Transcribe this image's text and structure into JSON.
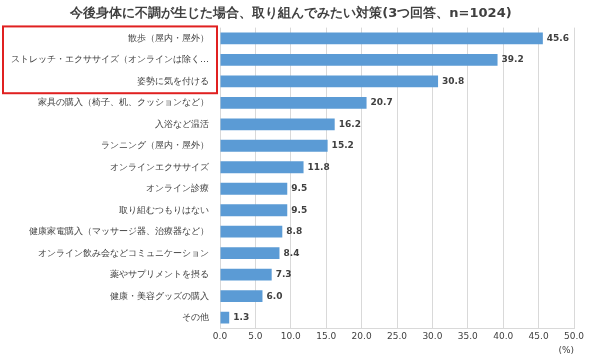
{
  "chart_data": {
    "type": "bar",
    "orientation": "horizontal",
    "title": "今後身体に不調が生じた場合、取り組んでみたい対策(3つ回答、n=1024)",
    "xlabel": "(%)",
    "categories": [
      "散歩（屋内・屋外）",
      "ストレッチ・エクササイズ（オンラインは除く…",
      "姿勢に気を付ける",
      "家具の購入（椅子、机、クッションなど）",
      "入浴など温活",
      "ランニング（屋内・屋外）",
      "オンラインエクササイズ",
      "オンライン診療",
      "取り組むつもりはない",
      "健康家電購入（マッサージ器、治療器など）",
      "オンライン飲み会などコミュニケーション",
      "薬やサプリメントを摂る",
      "健康・美容グッズの購入",
      "その他"
    ],
    "values": [
      45.6,
      39.2,
      30.8,
      20.7,
      16.2,
      15.2,
      11.8,
      9.5,
      9.5,
      8.8,
      8.4,
      7.3,
      6.0,
      1.3
    ],
    "value_labels": [
      "45.6",
      "39.2",
      "30.8",
      "20.7",
      "16.2",
      "15.2",
      "11.8",
      "9.5",
      "9.5",
      "8.8",
      "8.4",
      "7.3",
      "6.0",
      "1.3"
    ],
    "color": "#5b9bd5",
    "xlim": [
      0,
      50
    ],
    "xticks": [
      {
        "value": 0,
        "label": "0.0"
      },
      {
        "value": 5,
        "label": "5.0"
      },
      {
        "value": 10,
        "label": "10.0"
      },
      {
        "value": 15,
        "label": "15.0"
      },
      {
        "value": 20,
        "label": "20.0"
      },
      {
        "value": 25,
        "label": "25.0"
      },
      {
        "value": 30,
        "label": "30.0"
      },
      {
        "value": 35,
        "label": "35.0"
      },
      {
        "value": 40,
        "label": "40.0"
      },
      {
        "value": 45,
        "label": "45.0"
      },
      {
        "value": 50,
        "label": "50.0"
      }
    ],
    "grid": true,
    "data_labels": true
  }
}
